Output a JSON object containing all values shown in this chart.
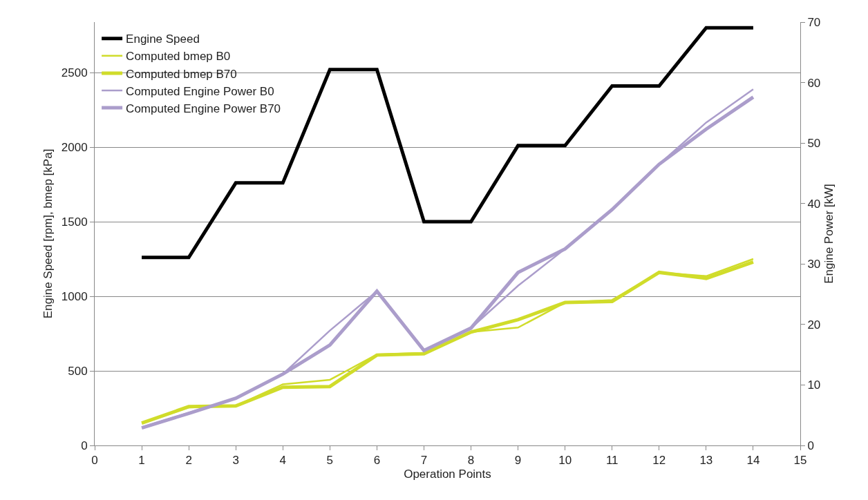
{
  "chart_data": {
    "type": "line",
    "xlabel": "Operation Points",
    "ylabel": "Engine Speed [rpm], bmep [kPa]",
    "y2label": "Engine Power [kW]",
    "x": [
      1,
      2,
      3,
      4,
      5,
      6,
      7,
      8,
      9,
      10,
      11,
      12,
      13,
      14
    ],
    "series": [
      {
        "name": "Engine Speed",
        "color": "#000000",
        "values": [
          1260,
          1260,
          1760,
          1760,
          2520,
          2520,
          1500,
          1500,
          2010,
          2010,
          2410,
          2410,
          2800,
          2800
        ]
      },
      {
        "name": "Computed bmep B0",
        "color": "#d0dc2a",
        "values": [
          150,
          255,
          265,
          410,
          440,
          610,
          620,
          760,
          790,
          958,
          975,
          1160,
          1135,
          1250
        ]
      },
      {
        "name": "Computed bmep B70",
        "color": "#d0dc2a",
        "values": [
          150,
          260,
          265,
          390,
          395,
          606,
          615,
          760,
          843,
          958,
          965,
          1160,
          1120,
          1230
        ]
      },
      {
        "name": "Computed Engine Power B0",
        "color": "#ab9dcb",
        "axis": "y2",
        "values": [
          3.0,
          5.4,
          7.8,
          11.8,
          19.0,
          25.5,
          15.7,
          19.4,
          26.4,
          32.5,
          39.0,
          46.5,
          53.4,
          58.9
        ]
      },
      {
        "name": "Computed Engine Power B70",
        "color": "#ab9dcb",
        "axis": "y2",
        "values": [
          2.9,
          5.3,
          7.8,
          11.8,
          16.6,
          25.5,
          15.7,
          19.4,
          28.6,
          32.5,
          39.0,
          46.5,
          52.3,
          57.6
        ]
      }
    ],
    "xlim": [
      0,
      15
    ],
    "xticks": [
      0,
      1,
      2,
      3,
      4,
      5,
      6,
      7,
      8,
      9,
      10,
      11,
      12,
      13,
      14,
      15
    ],
    "ylim": [
      0,
      2838
    ],
    "yticks": [
      0,
      500,
      1000,
      1500,
      2000,
      2500
    ],
    "y2lim": [
      0,
      70
    ],
    "y2ticks": [
      0,
      10,
      20,
      30,
      40,
      50,
      60,
      70
    ],
    "grid": "y",
    "legend": "top left",
    "marker": "none",
    "line_style": "solid"
  }
}
